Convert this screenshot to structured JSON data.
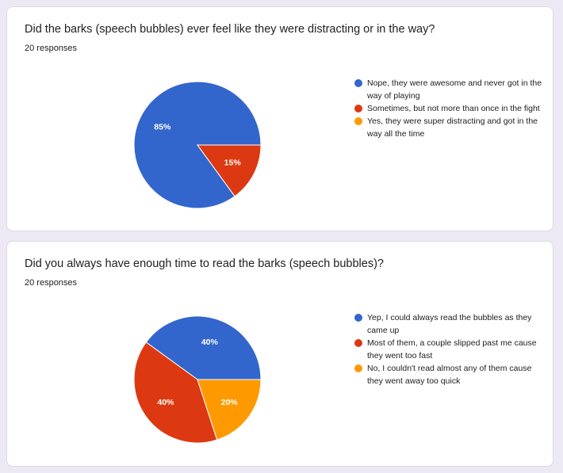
{
  "colors": {
    "blue": "#3366cc",
    "red": "#dc3912",
    "orange": "#ff9900"
  },
  "chart_data": [
    {
      "type": "pie",
      "title": "Did the barks (speech bubbles) ever feel like they were distracting or in the way?",
      "responses": "20 responses",
      "categories": [
        "Nope, they were awesome and never got in the way of playing",
        "Sometimes, but not more than once in the fight",
        "Yes, they were super distracting and got in the way all the time"
      ],
      "values": [
        85,
        15,
        0
      ],
      "labels": [
        "85%",
        "15%",
        ""
      ],
      "colors": [
        "#3366cc",
        "#dc3912",
        "#ff9900"
      ],
      "legend": "right"
    },
    {
      "type": "pie",
      "title": "Did you always have enough time to read the barks (speech bubbles)?",
      "responses": "20 responses",
      "categories": [
        "Yep, I could always read the bubbles as they came up",
        "Most of them, a couple slipped past me cause they went too fast",
        "No, I couldn't read almost any of them cause they went away too quick"
      ],
      "values": [
        40,
        40,
        20
      ],
      "labels": [
        "40%",
        "40%",
        "20%"
      ],
      "colors": [
        "#3366cc",
        "#dc3912",
        "#ff9900"
      ],
      "legend": "right"
    }
  ]
}
